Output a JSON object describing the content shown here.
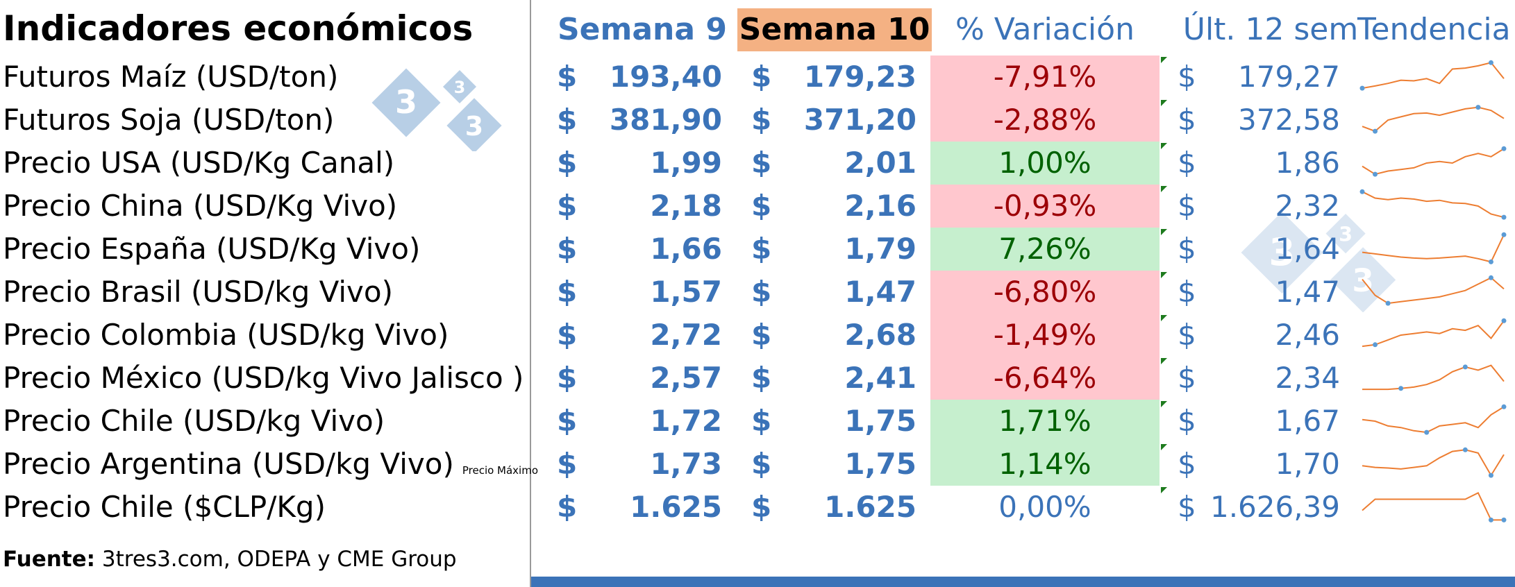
{
  "title": "Indicadores económicos",
  "headers": {
    "week9": "Semana 9",
    "week10": "Semana 10",
    "variation": "% Variación",
    "last12": "Últ. 12 sem",
    "trend": "Tendencia"
  },
  "colors": {
    "accent_blue": "#3b73b8",
    "week10_header_bg": "#f4b183",
    "negative_bg": "#ffc7ce",
    "negative_text": "#9c0006",
    "positive_bg": "#c6efce",
    "positive_text": "#006100",
    "sparkline": "#ed7d31",
    "sparkline_marker": "#5b9bd5"
  },
  "rows": [
    {
      "label": "Futuros Maíz (USD/ton)",
      "cur": "$",
      "w9": "193,40",
      "w10": "179,23",
      "var": "-7,91%",
      "sign": "neg",
      "last12": "179,27",
      "trend": [
        0.15,
        0.22,
        0.3,
        0.4,
        0.38,
        0.45,
        0.3,
        0.75,
        0.78,
        0.85,
        0.95,
        0.45
      ],
      "markers": [
        0,
        10
      ]
    },
    {
      "label": "Futuros Soja (USD/ton)",
      "cur": "$",
      "w9": "381,90",
      "w10": "371,20",
      "var": "-2,88%",
      "sign": "neg",
      "last12": "372,58",
      "trend": [
        0.3,
        0.15,
        0.5,
        0.6,
        0.7,
        0.72,
        0.65,
        0.75,
        0.85,
        0.9,
        0.8,
        0.55
      ],
      "markers": [
        1,
        9
      ]
    },
    {
      "label": "Precio USA (USD/Kg Canal)",
      "cur": "$",
      "w9": "1,99",
      "w10": "2,01",
      "var": "1,00%",
      "sign": "pos",
      "last12": "1,86",
      "trend": [
        0.4,
        0.15,
        0.25,
        0.3,
        0.35,
        0.5,
        0.55,
        0.5,
        0.7,
        0.8,
        0.7,
        0.95
      ],
      "markers": [
        1,
        11
      ]
    },
    {
      "label": "Precio China (USD/Kg Vivo)",
      "cur": "$",
      "w9": "2,18",
      "w10": "2,16",
      "var": "-0,93%",
      "sign": "neg",
      "last12": "2,32",
      "trend": [
        0.95,
        0.75,
        0.7,
        0.75,
        0.72,
        0.65,
        0.68,
        0.6,
        0.58,
        0.5,
        0.25,
        0.15
      ],
      "markers": [
        0,
        11
      ]
    },
    {
      "label": "Precio España (USD/Kg Vivo)",
      "cur": "$",
      "w9": "1,66",
      "w10": "1,79",
      "var": "7,26%",
      "sign": "pos",
      "last12": "1,64",
      "trend": [
        0.4,
        0.35,
        0.3,
        0.25,
        0.22,
        0.2,
        0.22,
        0.25,
        0.28,
        0.2,
        0.1,
        0.95
      ],
      "markers": [
        10,
        11
      ]
    },
    {
      "label": "Precio  Brasil (USD/kg Vivo)",
      "cur": "$",
      "w9": "1,57",
      "w10": "1,47",
      "var": "-6,80%",
      "sign": "neg",
      "last12": "1,47",
      "trend": [
        0.9,
        0.4,
        0.15,
        0.2,
        0.25,
        0.3,
        0.35,
        0.45,
        0.55,
        0.75,
        0.95,
        0.6
      ],
      "markers": [
        2,
        10
      ]
    },
    {
      "label": "Precio Colombia (USD/kg Vivo)",
      "cur": "$",
      "w9": "2,72",
      "w10": "2,68",
      "var": "-1,49%",
      "sign": "neg",
      "last12": "2,46",
      "trend": [
        0.15,
        0.2,
        0.35,
        0.5,
        0.55,
        0.6,
        0.55,
        0.7,
        0.65,
        0.8,
        0.4,
        0.95
      ],
      "markers": [
        1,
        11
      ]
    },
    {
      "label": "Precio México (USD/kg Vivo Jalisco )",
      "cur": "$",
      "w9": "2,57",
      "w10": "2,41",
      "var": "-6,64%",
      "sign": "neg",
      "last12": "2,34",
      "trend": [
        0.15,
        0.15,
        0.15,
        0.18,
        0.22,
        0.3,
        0.45,
        0.7,
        0.85,
        0.75,
        0.9,
        0.4
      ],
      "markers": [
        3,
        8
      ]
    },
    {
      "label": "Precio Chile (USD/kg Vivo)",
      "cur": "$",
      "w9": "1,72",
      "w10": "1,75",
      "var": "1,71%",
      "sign": "pos",
      "last12": "1,67",
      "trend": [
        0.55,
        0.5,
        0.35,
        0.3,
        0.2,
        0.15,
        0.35,
        0.4,
        0.45,
        0.3,
        0.7,
        0.95
      ],
      "markers": [
        5,
        11
      ]
    },
    {
      "label": "Precio Argentina (USD/kg Vivo)",
      "note": "Precio Máximo",
      "cur": "$",
      "w9": "1,73",
      "w10": "1,75",
      "var": "1,14%",
      "sign": "pos",
      "last12": "1,70",
      "trend": [
        0.45,
        0.4,
        0.38,
        0.35,
        0.4,
        0.45,
        0.7,
        0.9,
        0.95,
        0.85,
        0.15,
        0.8
      ],
      "markers": [
        8,
        10
      ]
    },
    {
      "label": "Precio Chile ($CLP/Kg)",
      "cur": "$",
      "w9": "1.625",
      "w10": "1.625",
      "var": "0,00%",
      "sign": "zero",
      "last12": "1.626,39",
      "trend": [
        0.4,
        0.75,
        0.75,
        0.75,
        0.75,
        0.75,
        0.75,
        0.75,
        0.75,
        0.95,
        0.1,
        0.1
      ],
      "markers": [
        10,
        11
      ]
    }
  ],
  "source": {
    "label": "Fuente:",
    "text": " 3tres3.com, ODEPA y CME Group"
  },
  "logo": {
    "digits": [
      "3",
      "3",
      "3"
    ]
  }
}
